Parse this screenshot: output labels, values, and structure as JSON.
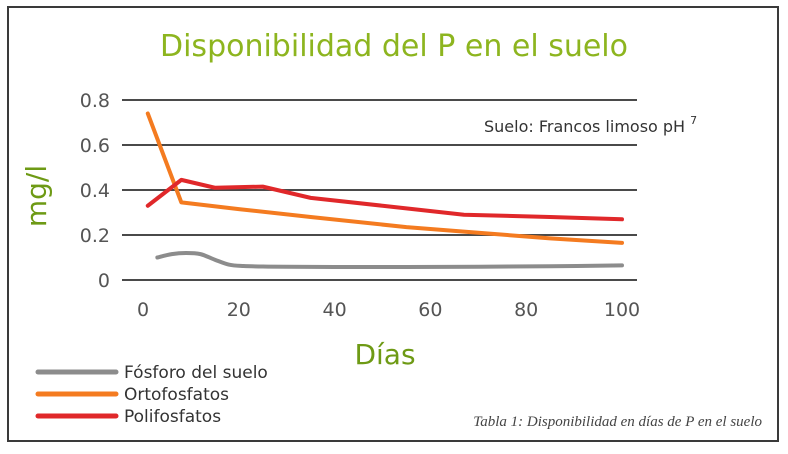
{
  "colors": {
    "title": "#8db51f",
    "axis_label": "#6e9a15",
    "grid": "#4a4a4a",
    "tick": "#555555",
    "text": "#333333",
    "caption": "#444444"
  },
  "chart_data": {
    "type": "line",
    "title": "Disponibilidad del P en el suelo",
    "xlabel": "Días",
    "ylabel": "mg/l",
    "xlim": [
      0,
      100
    ],
    "ylim": [
      0,
      0.8
    ],
    "x_ticks": [
      0,
      20,
      40,
      60,
      80,
      100
    ],
    "x_tick_labels": [
      "0",
      "20",
      "40",
      "60",
      "80",
      "100"
    ],
    "y_ticks": [
      0,
      0.2,
      0.4,
      0.6,
      0.8
    ],
    "y_tick_labels": [
      "0",
      "0.2",
      "0.4",
      "0.6",
      "0.8"
    ],
    "annotation": "Suelo: Francos limoso pH",
    "annotation_sup": "7",
    "caption": "Tabla 1: Disponibilidad en días de P en el suelo",
    "legend_position": "bottom-left",
    "series": [
      {
        "name": "Fósforo del suelo",
        "color": "#8c8c8c",
        "x": [
          3,
          6,
          9,
          12,
          15,
          18,
          21,
          25,
          30,
          40,
          55,
          70,
          85,
          100
        ],
        "y": [
          0.1,
          0.115,
          0.12,
          0.115,
          0.09,
          0.068,
          0.062,
          0.06,
          0.059,
          0.058,
          0.058,
          0.059,
          0.061,
          0.065
        ]
      },
      {
        "name": "Ortofosfatos",
        "color": "#f47b20",
        "x": [
          1,
          8,
          20,
          35,
          55,
          70,
          85,
          100
        ],
        "y": [
          0.74,
          0.345,
          0.315,
          0.28,
          0.235,
          0.21,
          0.185,
          0.165
        ]
      },
      {
        "name": "Polifosfatos",
        "color": "#e0282a",
        "x": [
          1,
          8,
          15,
          25,
          35,
          50,
          67,
          85,
          100
        ],
        "y": [
          0.33,
          0.445,
          0.41,
          0.415,
          0.365,
          0.33,
          0.29,
          0.28,
          0.27
        ]
      }
    ]
  }
}
